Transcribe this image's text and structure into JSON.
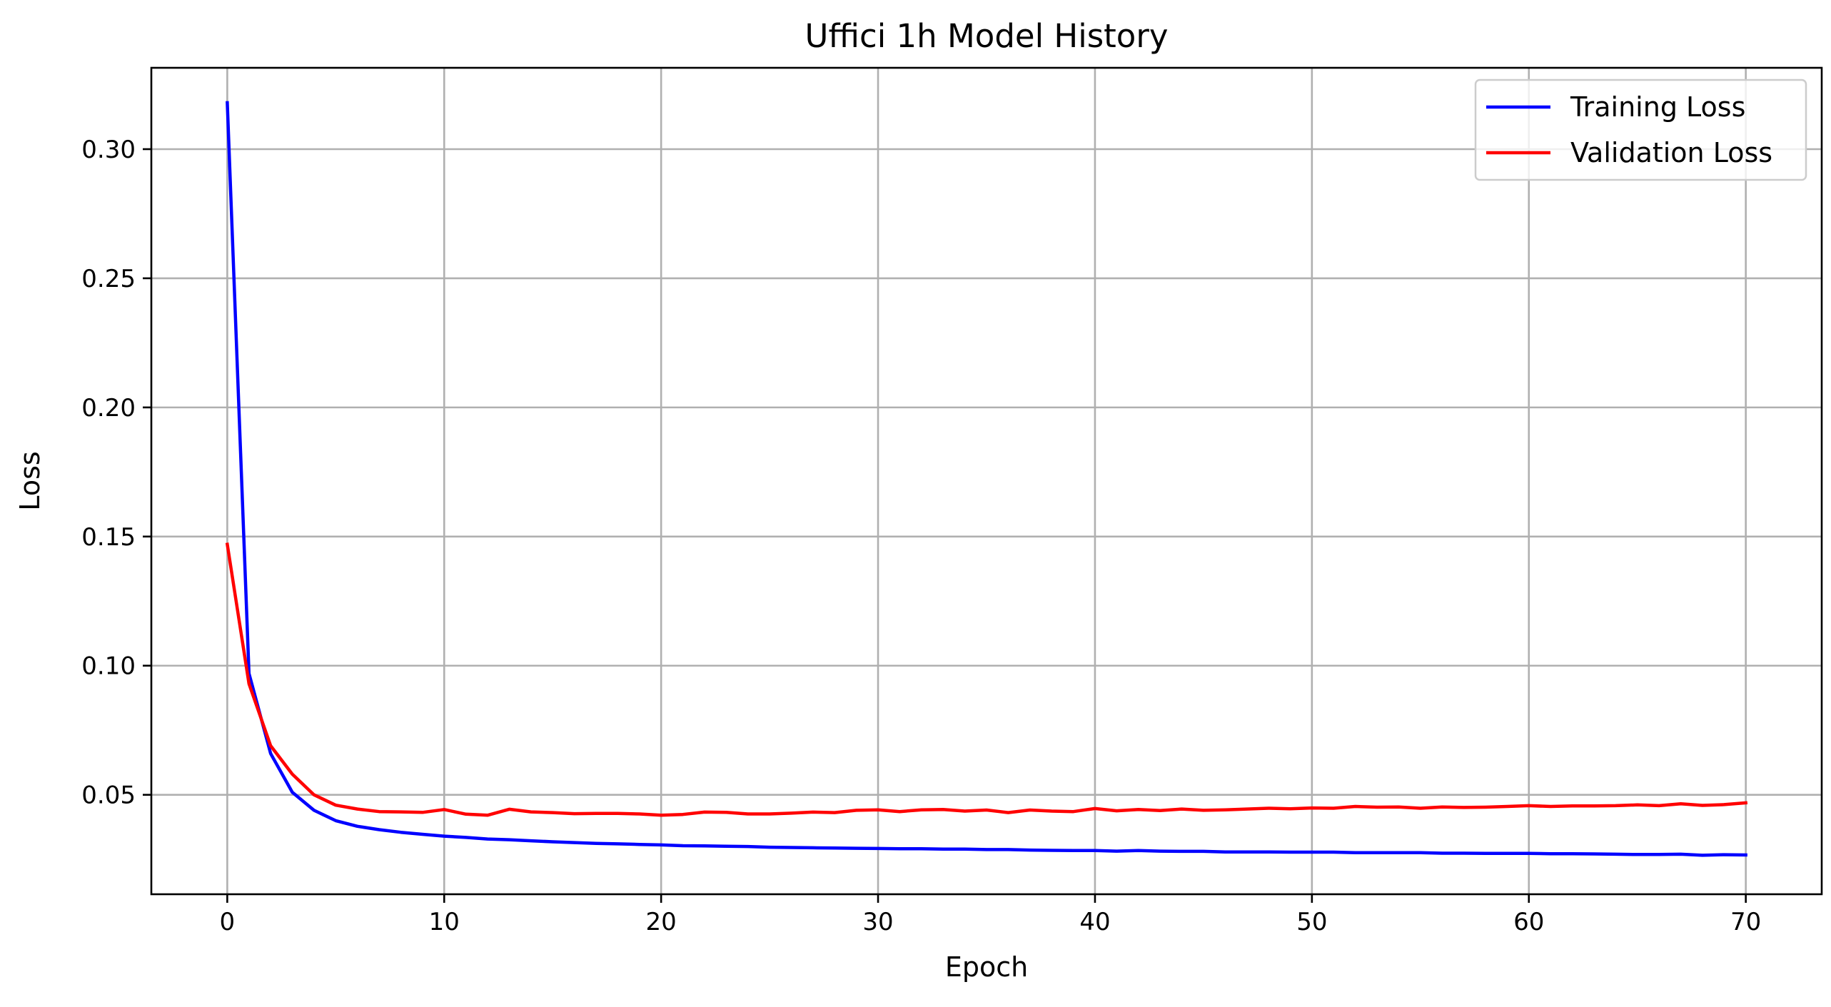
{
  "chart_data": {
    "type": "line",
    "title": "Uffici 1h Model History",
    "xlabel": "Epoch",
    "ylabel": "Loss",
    "xlim": [
      -3.5,
      73.5
    ],
    "ylim": [
      0.0115,
      0.3315
    ],
    "xticks": [
      0,
      10,
      20,
      30,
      40,
      50,
      60,
      70
    ],
    "xtick_labels": [
      "0",
      "10",
      "20",
      "30",
      "40",
      "50",
      "60",
      "70"
    ],
    "yticks": [
      0.05,
      0.1,
      0.15,
      0.2,
      0.25,
      0.3
    ],
    "ytick_labels": [
      "0.05",
      "0.10",
      "0.15",
      "0.20",
      "0.25",
      "0.30"
    ],
    "grid": true,
    "legend_position": "top-right",
    "series": [
      {
        "name": "Training Loss",
        "color": "#0000ff",
        "x": [
          0,
          1,
          2,
          3,
          4,
          5,
          6,
          7,
          8,
          9,
          10,
          11,
          12,
          13,
          14,
          15,
          16,
          17,
          18,
          19,
          20,
          21,
          22,
          23,
          24,
          25,
          26,
          27,
          28,
          29,
          30,
          31,
          32,
          33,
          34,
          35,
          36,
          37,
          38,
          39,
          40,
          41,
          42,
          43,
          44,
          45,
          46,
          47,
          48,
          49,
          50,
          51,
          52,
          53,
          54,
          55,
          56,
          57,
          58,
          59,
          60,
          61,
          62,
          63,
          64,
          65,
          66,
          67,
          68,
          69,
          70
        ],
        "values": [
          0.318,
          0.097,
          0.066,
          0.051,
          0.044,
          0.04,
          0.0378,
          0.0365,
          0.0355,
          0.0347,
          0.034,
          0.0335,
          0.0329,
          0.0326,
          0.0322,
          0.0318,
          0.0315,
          0.0312,
          0.031,
          0.0308,
          0.0306,
          0.0303,
          0.0302,
          0.0301,
          0.03,
          0.0297,
          0.0296,
          0.0295,
          0.0294,
          0.0293,
          0.0292,
          0.0291,
          0.0291,
          0.029,
          0.029,
          0.0288,
          0.0288,
          0.0286,
          0.0285,
          0.0284,
          0.0284,
          0.0282,
          0.0284,
          0.0282,
          0.0281,
          0.0281,
          0.0279,
          0.0279,
          0.0279,
          0.0278,
          0.0278,
          0.0278,
          0.0276,
          0.0276,
          0.0276,
          0.0276,
          0.0274,
          0.0274,
          0.0273,
          0.0273,
          0.0273,
          0.0272,
          0.0272,
          0.0271,
          0.027,
          0.0269,
          0.0269,
          0.027,
          0.0266,
          0.0268,
          0.0267
        ]
      },
      {
        "name": "Validation Loss",
        "color": "#ff0000",
        "x": [
          0,
          1,
          2,
          3,
          4,
          5,
          6,
          7,
          8,
          9,
          10,
          11,
          12,
          13,
          14,
          15,
          16,
          17,
          18,
          19,
          20,
          21,
          22,
          23,
          24,
          25,
          26,
          27,
          28,
          29,
          30,
          31,
          32,
          33,
          34,
          35,
          36,
          37,
          38,
          39,
          40,
          41,
          42,
          43,
          44,
          45,
          46,
          47,
          48,
          49,
          50,
          51,
          52,
          53,
          54,
          55,
          56,
          57,
          58,
          59,
          60,
          61,
          62,
          63,
          64,
          65,
          66,
          67,
          68,
          69,
          70
        ],
        "values": [
          0.147,
          0.093,
          0.069,
          0.058,
          0.05,
          0.046,
          0.0445,
          0.0435,
          0.0434,
          0.0432,
          0.0443,
          0.0425,
          0.0421,
          0.0444,
          0.0434,
          0.0431,
          0.0427,
          0.0428,
          0.0428,
          0.0426,
          0.0421,
          0.0424,
          0.0433,
          0.0432,
          0.0426,
          0.0426,
          0.0429,
          0.0433,
          0.0431,
          0.044,
          0.0442,
          0.0435,
          0.0442,
          0.0443,
          0.0437,
          0.0441,
          0.0431,
          0.0441,
          0.0437,
          0.0435,
          0.0447,
          0.0438,
          0.0443,
          0.0439,
          0.0445,
          0.044,
          0.0442,
          0.0445,
          0.0448,
          0.0446,
          0.0449,
          0.0448,
          0.0455,
          0.0452,
          0.0453,
          0.0448,
          0.0453,
          0.0451,
          0.0452,
          0.0455,
          0.0458,
          0.0455,
          0.0457,
          0.0457,
          0.0458,
          0.0461,
          0.0458,
          0.0465,
          0.0459,
          0.0462,
          0.0469
        ]
      }
    ]
  }
}
